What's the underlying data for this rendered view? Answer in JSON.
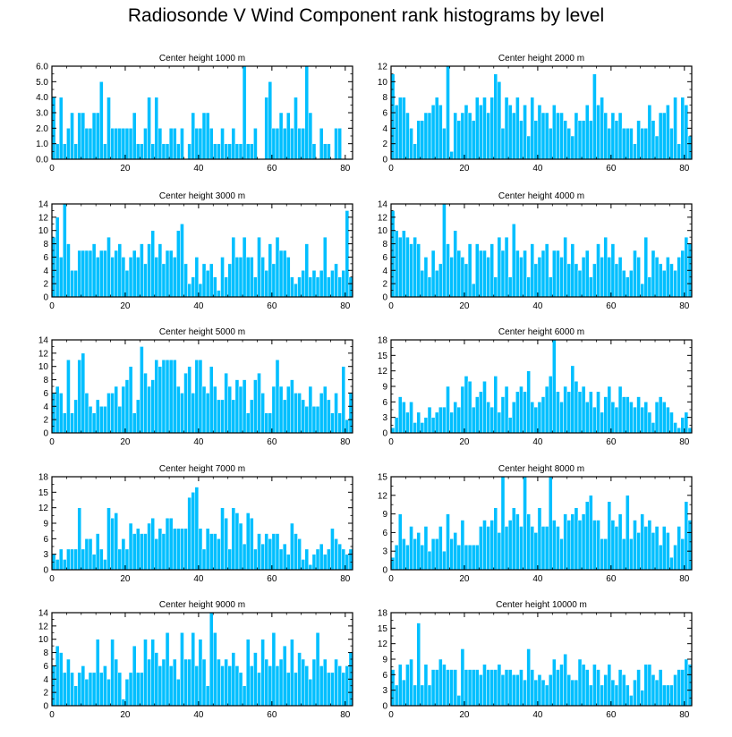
{
  "title": "Radiosonde V Wind Component rank histograms by level",
  "bar_color": "#00bfff",
  "bar_edge_color": "#ffffff",
  "chart_data": [
    {
      "type": "bar",
      "title": "Center height 1000 m",
      "xlim": [
        0,
        82
      ],
      "ylim": [
        0,
        6.0
      ],
      "xticks": [
        0,
        20,
        40,
        60,
        80
      ],
      "yticks": [
        0.0,
        1.0,
        2.0,
        3.0,
        4.0,
        5.0,
        6.0
      ],
      "ytick_labels": [
        "0.0",
        "1.0",
        "2.0",
        "3.0",
        "4.0",
        "5.0",
        "6.0"
      ],
      "values": [
        4,
        1,
        4,
        1,
        2,
        3,
        1,
        3,
        3,
        2,
        2,
        3,
        3,
        5,
        1,
        4,
        2,
        2,
        2,
        2,
        2,
        2,
        3,
        1,
        1,
        2,
        4,
        1,
        4,
        2,
        1,
        1,
        2,
        2,
        1,
        2,
        0,
        1,
        3,
        2,
        2,
        3,
        3,
        2,
        1,
        1,
        2,
        1,
        1,
        2,
        1,
        1,
        6,
        1,
        1,
        2,
        0,
        0,
        4,
        5,
        2,
        2,
        3,
        2,
        3,
        2,
        4,
        2,
        2,
        6,
        3,
        1,
        0,
        2,
        1,
        1,
        0,
        2,
        2,
        0
      ]
    },
    {
      "type": "bar",
      "title": "Center height 2000 m",
      "xlim": [
        0,
        82
      ],
      "ylim": [
        0,
        12
      ],
      "xticks": [
        0,
        20,
        40,
        60,
        80
      ],
      "yticks": [
        0,
        2,
        4,
        6,
        8,
        10,
        12
      ],
      "ytick_labels": [
        "0",
        "2",
        "4",
        "6",
        "8",
        "10",
        "12"
      ],
      "values": [
        11,
        7,
        8,
        8,
        6,
        4,
        2,
        5,
        5,
        6,
        6,
        7,
        8,
        7,
        4,
        12,
        1,
        6,
        5,
        6,
        7,
        6,
        5,
        8,
        7,
        8,
        6,
        8,
        11,
        10,
        4,
        8,
        7,
        6,
        8,
        5,
        7,
        3,
        8,
        5,
        7,
        6,
        6,
        4,
        7,
        6,
        6,
        5,
        4,
        3,
        6,
        5,
        5,
        7,
        5,
        11,
        7,
        8,
        6,
        4,
        6,
        5,
        6,
        4,
        4,
        4,
        2,
        5,
        4,
        4,
        7,
        5,
        3,
        6,
        6,
        7,
        4,
        8,
        2,
        8,
        7,
        3
      ]
    },
    {
      "type": "bar",
      "title": "Center height 3000 m",
      "xlim": [
        0,
        82
      ],
      "ylim": [
        0,
        14
      ],
      "xticks": [
        0,
        20,
        40,
        60,
        80
      ],
      "yticks": [
        0,
        2,
        4,
        6,
        8,
        10,
        12,
        14
      ],
      "ytick_labels": [
        "0",
        "2",
        "4",
        "6",
        "8",
        "10",
        "12",
        "14"
      ],
      "values": [
        9,
        12,
        6,
        14,
        8,
        4,
        4,
        7,
        7,
        7,
        7,
        8,
        6,
        7,
        7,
        9,
        6,
        7,
        8,
        6,
        4,
        6,
        7,
        6,
        8,
        5,
        8,
        10,
        6,
        8,
        5,
        7,
        7,
        6,
        10,
        11,
        5,
        2,
        3,
        6,
        2,
        5,
        4,
        5,
        3,
        1,
        6,
        3,
        5,
        9,
        6,
        6,
        9,
        6,
        6,
        3,
        9,
        6,
        4,
        8,
        5,
        9,
        7,
        7,
        6,
        3,
        2,
        3,
        4,
        8,
        3,
        4,
        3,
        4,
        9,
        3,
        4,
        5,
        3,
        4,
        13,
        3
      ]
    },
    {
      "type": "bar",
      "title": "Center height 4000 m",
      "xlim": [
        0,
        82
      ],
      "ylim": [
        0,
        14
      ],
      "xticks": [
        0,
        20,
        40,
        60,
        80
      ],
      "yticks": [
        0,
        2,
        4,
        6,
        8,
        10,
        12,
        14
      ],
      "ytick_labels": [
        "0",
        "2",
        "4",
        "6",
        "8",
        "10",
        "12",
        "14"
      ],
      "values": [
        13,
        10,
        9,
        10,
        9,
        8,
        9,
        8,
        4,
        6,
        3,
        7,
        4,
        5,
        14,
        8,
        6,
        10,
        7,
        6,
        5,
        8,
        2,
        8,
        7,
        7,
        6,
        8,
        3,
        9,
        7,
        9,
        3,
        11,
        7,
        6,
        7,
        3,
        8,
        5,
        6,
        7,
        8,
        3,
        7,
        7,
        6,
        9,
        5,
        8,
        5,
        4,
        6,
        7,
        3,
        5,
        8,
        6,
        9,
        6,
        8,
        5,
        6,
        4,
        3,
        4,
        7,
        6,
        2,
        9,
        3,
        7,
        6,
        5,
        4,
        6,
        5,
        4,
        6,
        7,
        9,
        8
      ]
    },
    {
      "type": "bar",
      "title": "Center height 5000 m",
      "xlim": [
        0,
        82
      ],
      "ylim": [
        0,
        14
      ],
      "xticks": [
        0,
        20,
        40,
        60,
        80
      ],
      "yticks": [
        0,
        2,
        4,
        6,
        8,
        10,
        12,
        14
      ],
      "ytick_labels": [
        "0",
        "2",
        "4",
        "6",
        "8",
        "10",
        "12",
        "14"
      ],
      "values": [
        6,
        7,
        6,
        3,
        11,
        3,
        5,
        11,
        12,
        6,
        4,
        3,
        5,
        4,
        4,
        6,
        6,
        7,
        4,
        7,
        8,
        10,
        3,
        5,
        13,
        9,
        7,
        8,
        11,
        10,
        11,
        11,
        11,
        11,
        7,
        6,
        9,
        10,
        6,
        11,
        11,
        7,
        6,
        10,
        7,
        5,
        5,
        9,
        7,
        5,
        8,
        7,
        8,
        3,
        5,
        8,
        9,
        6,
        3,
        3,
        7,
        11,
        7,
        5,
        7,
        8,
        6,
        6,
        5,
        4,
        7,
        4,
        4,
        6,
        7,
        5,
        3,
        6,
        3,
        10,
        2,
        6
      ]
    },
    {
      "type": "bar",
      "title": "Center height 6000 m",
      "xlim": [
        0,
        82
      ],
      "ylim": [
        0,
        18
      ],
      "xticks": [
        0,
        20,
        40,
        60,
        80
      ],
      "yticks": [
        0,
        3,
        6,
        9,
        12,
        15,
        18
      ],
      "ytick_labels": [
        "0",
        "3",
        "6",
        "9",
        "12",
        "15",
        "18"
      ],
      "values": [
        1,
        3,
        7,
        6,
        4,
        6,
        2,
        4,
        2,
        3,
        5,
        3,
        4,
        5,
        5,
        9,
        4,
        6,
        5,
        9,
        11,
        10,
        5,
        7,
        8,
        10,
        6,
        5,
        11,
        4,
        7,
        9,
        3,
        6,
        8,
        9,
        8,
        12,
        6,
        5,
        6,
        7,
        9,
        11,
        18,
        8,
        6,
        9,
        8,
        13,
        10,
        8,
        9,
        6,
        8,
        5,
        8,
        4,
        7,
        9,
        6,
        5,
        9,
        7,
        7,
        6,
        5,
        7,
        5,
        6,
        4,
        2,
        6,
        7,
        6,
        5,
        4,
        2,
        1,
        3,
        4,
        1
      ]
    },
    {
      "type": "bar",
      "title": "Center height 7000 m",
      "xlim": [
        0,
        82
      ],
      "ylim": [
        0,
        18
      ],
      "xticks": [
        0,
        20,
        40,
        60,
        80
      ],
      "yticks": [
        0,
        3,
        6,
        9,
        12,
        15,
        18
      ],
      "ytick_labels": [
        "0",
        "3",
        "6",
        "9",
        "12",
        "15",
        "18"
      ],
      "values": [
        3,
        2,
        4,
        2,
        4,
        4,
        4,
        12,
        4,
        6,
        6,
        3,
        7,
        4,
        2,
        12,
        10,
        11,
        4,
        6,
        4,
        9,
        7,
        8,
        7,
        7,
        9,
        10,
        6,
        8,
        7,
        10,
        10,
        8,
        8,
        8,
        8,
        14,
        15,
        16,
        8,
        4,
        8,
        7,
        7,
        6,
        12,
        10,
        4,
        12,
        11,
        9,
        5,
        11,
        10,
        4,
        7,
        5,
        7,
        6,
        7,
        7,
        4,
        5,
        3,
        9,
        7,
        6,
        2,
        4,
        1,
        3,
        4,
        5,
        3,
        4,
        8,
        6,
        5,
        4,
        3,
        4
      ]
    },
    {
      "type": "bar",
      "title": "Center height 8000 m",
      "xlim": [
        0,
        82
      ],
      "ylim": [
        0,
        15
      ],
      "xticks": [
        0,
        20,
        40,
        60,
        80
      ],
      "yticks": [
        0,
        3,
        6,
        9,
        12,
        15
      ],
      "ytick_labels": [
        "0",
        "3",
        "6",
        "9",
        "12",
        "15"
      ],
      "values": [
        2,
        4,
        9,
        5,
        4,
        7,
        5,
        6,
        4,
        7,
        3,
        5,
        5,
        7,
        3,
        9,
        5,
        6,
        4,
        8,
        4,
        4,
        4,
        4,
        7,
        8,
        7,
        8,
        10,
        6,
        15,
        7,
        8,
        10,
        9,
        7,
        15,
        9,
        7,
        6,
        10,
        7,
        7,
        15,
        8,
        7,
        5,
        9,
        8,
        9,
        10,
        8,
        9,
        11,
        12,
        8,
        8,
        5,
        5,
        11,
        8,
        7,
        9,
        5,
        12,
        5,
        8,
        6,
        9,
        7,
        8,
        6,
        7,
        4,
        7,
        6,
        2,
        4,
        7,
        5,
        11,
        8
      ]
    },
    {
      "type": "bar",
      "title": "Center height 9000 m",
      "xlim": [
        0,
        82
      ],
      "ylim": [
        0,
        14
      ],
      "xticks": [
        0,
        20,
        40,
        60,
        80
      ],
      "yticks": [
        0,
        2,
        4,
        6,
        8,
        10,
        12,
        14
      ],
      "ytick_labels": [
        "0",
        "2",
        "4",
        "6",
        "8",
        "10",
        "12",
        "14"
      ],
      "values": [
        6,
        9,
        8,
        5,
        7,
        5,
        3,
        5,
        6,
        4,
        5,
        5,
        10,
        5,
        6,
        4,
        10,
        7,
        5,
        1,
        4,
        5,
        9,
        5,
        5,
        10,
        7,
        10,
        8,
        6,
        7,
        11,
        6,
        7,
        4,
        11,
        7,
        7,
        11,
        6,
        10,
        7,
        3,
        14,
        11,
        7,
        6,
        7,
        6,
        8,
        6,
        5,
        3,
        10,
        6,
        8,
        5,
        10,
        7,
        6,
        11,
        6,
        7,
        9,
        5,
        10,
        5,
        8,
        7,
        6,
        4,
        7,
        11,
        6,
        7,
        5,
        5,
        7,
        6,
        5,
        6,
        8
      ]
    },
    {
      "type": "bar",
      "title": "Center height 10000 m",
      "xlim": [
        0,
        82
      ],
      "ylim": [
        0,
        18
      ],
      "xticks": [
        0,
        20,
        40,
        60,
        80
      ],
      "yticks": [
        0,
        3,
        6,
        9,
        12,
        15,
        18
      ],
      "ytick_labels": [
        "0",
        "3",
        "6",
        "9",
        "12",
        "15",
        "18"
      ],
      "values": [
        7,
        4,
        8,
        5,
        8,
        9,
        4,
        16,
        4,
        8,
        4,
        7,
        7,
        9,
        8,
        7,
        7,
        7,
        2,
        11,
        7,
        7,
        7,
        7,
        6,
        8,
        7,
        7,
        7,
        8,
        6,
        7,
        7,
        6,
        6,
        7,
        5,
        11,
        7,
        5,
        6,
        5,
        4,
        6,
        9,
        7,
        8,
        10,
        6,
        5,
        5,
        9,
        8,
        7,
        4,
        8,
        7,
        4,
        6,
        8,
        5,
        4,
        7,
        6,
        4,
        2,
        5,
        7,
        3,
        8,
        8,
        6,
        5,
        7,
        4,
        4,
        4,
        6,
        7,
        7,
        9,
        8
      ]
    }
  ]
}
